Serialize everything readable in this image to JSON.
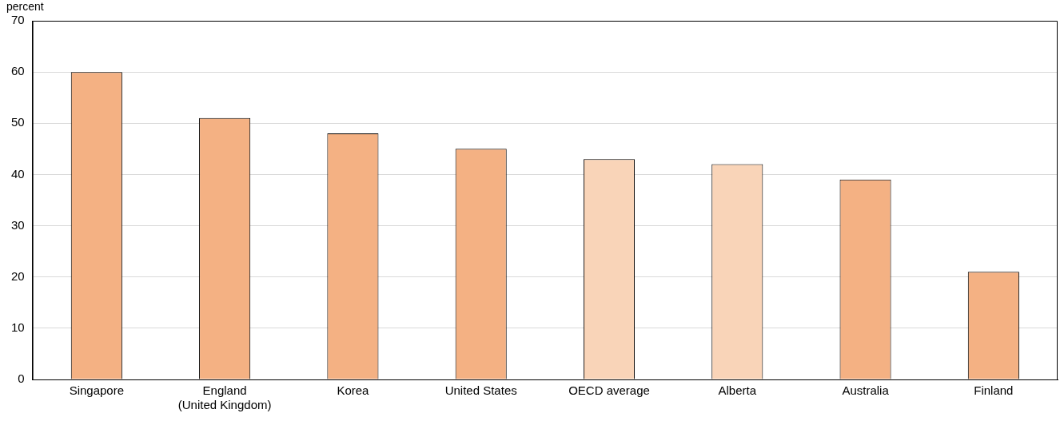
{
  "chart_data": {
    "type": "bar",
    "ylabel": "percent",
    "categories": [
      "Singapore",
      "England\n(United Kingdom)",
      "Korea",
      "United States",
      "OECD average",
      "Alberta",
      "Australia",
      "Finland"
    ],
    "values": [
      60,
      51,
      48,
      45,
      43,
      42,
      39,
      21
    ],
    "colors": [
      "#f4b183",
      "#f4b183",
      "#f4b183",
      "#f4b183",
      "#f9d4b8",
      "#f9d4b8",
      "#f4b183",
      "#f4b183"
    ],
    "ylim": [
      0,
      70
    ],
    "yticks": [
      0,
      10,
      20,
      30,
      40,
      50,
      60,
      70
    ],
    "grid": "y",
    "legend": false
  }
}
